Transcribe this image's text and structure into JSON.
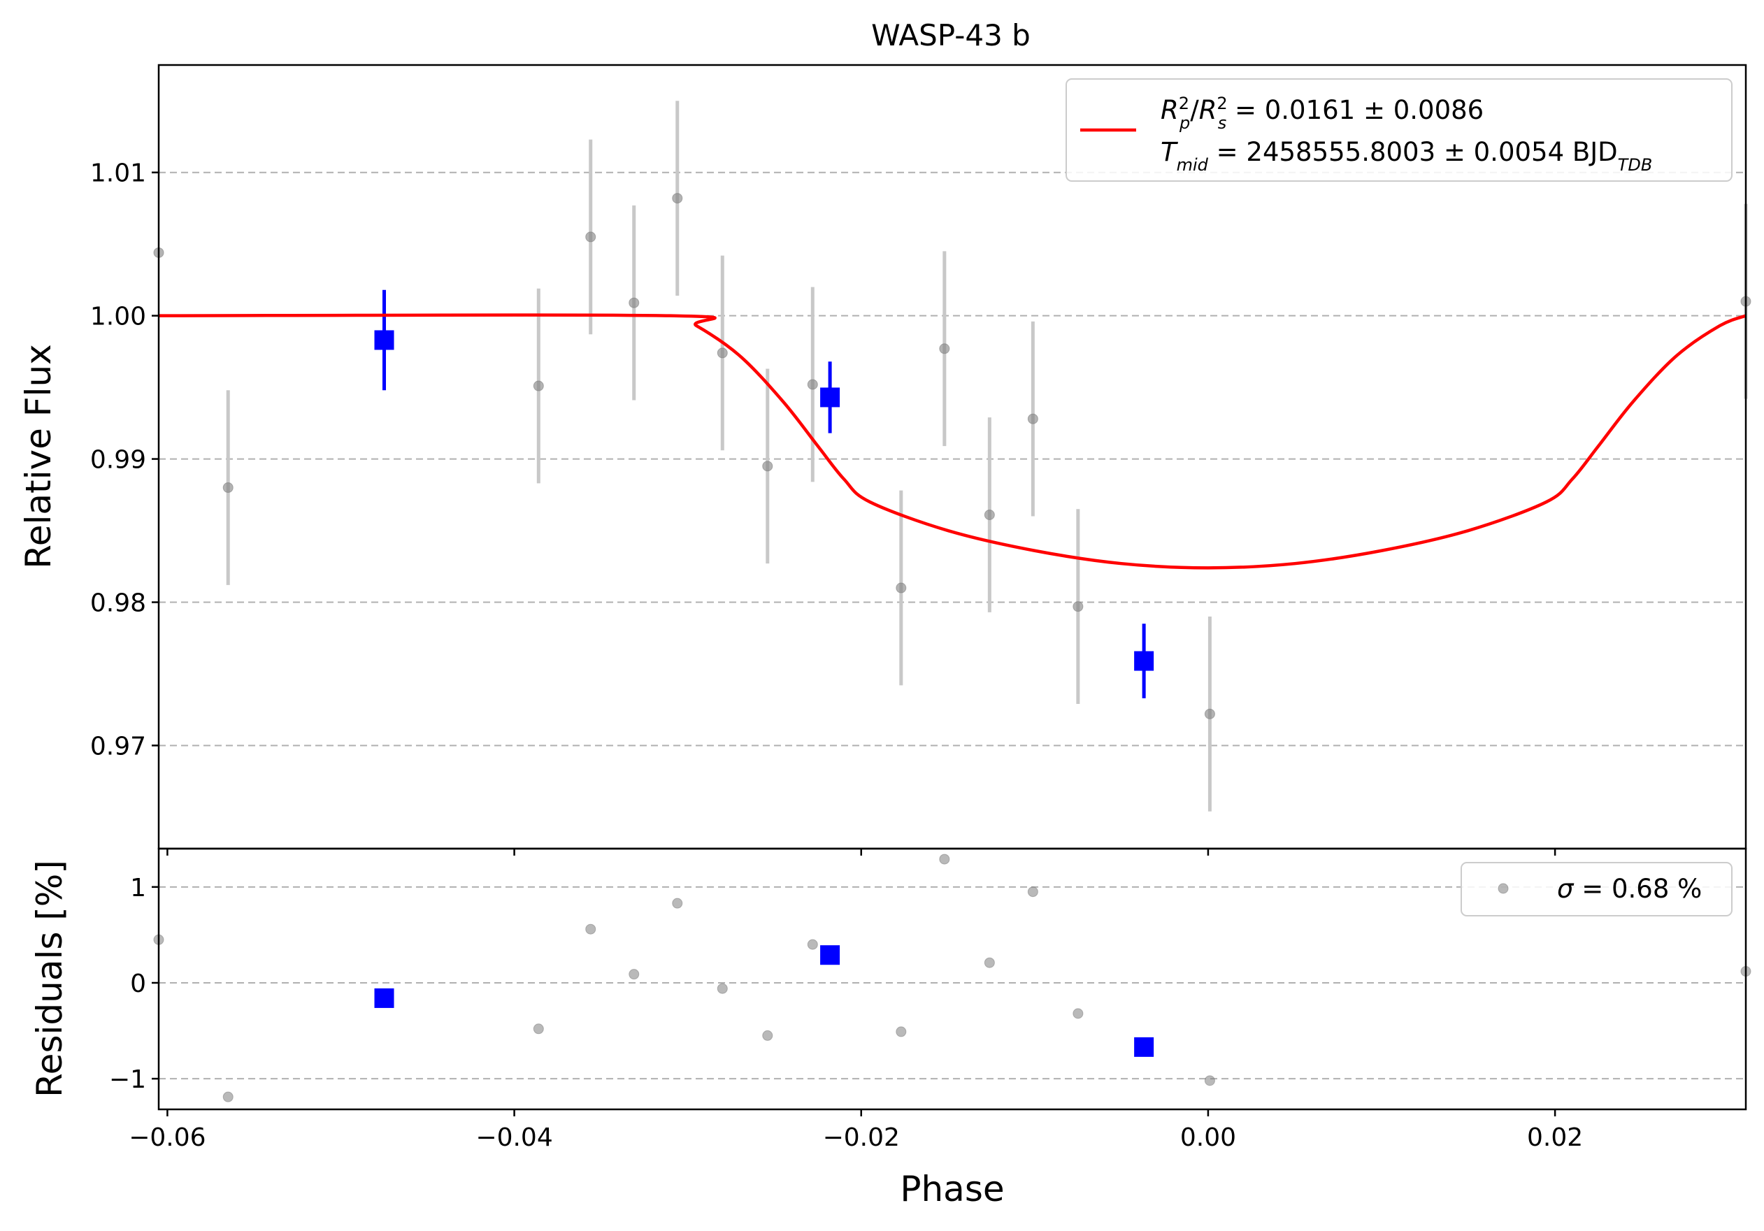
{
  "title": "WASP-43 b",
  "colors": {
    "model": "#ff0000",
    "binned": "#0000ff",
    "raw": "#808080",
    "raw_err": "#c8c8c8",
    "grid": "#b0b0b0"
  },
  "chart_data": [
    {
      "type": "scatter",
      "panel": "light-curve",
      "title": "WASP-43 b",
      "xlabel": "",
      "ylabel": "Relative Flux",
      "xlim": [
        -0.0605,
        0.031
      ],
      "ylim": [
        0.9628,
        1.0175
      ],
      "yticks": [
        0.97,
        0.98,
        0.99,
        1.0,
        1.01
      ],
      "ytick_labels": [
        "0.97",
        "0.98",
        "0.99",
        "1.00",
        "1.01"
      ],
      "grid": "horizontal dashed",
      "legend": {
        "placement": "top-right",
        "line1_main": "R",
        "line1_rest": " = 0.0161 ± 0.0086",
        "line2_main": "T",
        "line2_sub": "mid",
        "line2_rest": " = 2458555.8003 ± 0.0054 BJD",
        "line2_tail_sub": "TDB"
      },
      "series": [
        {
          "kind": "raw",
          "points": [
            {
              "x": -0.0605,
              "y": 1.0044,
              "err": 0.0
            },
            {
              "x": -0.0565,
              "y": 0.988,
              "err": 0.0068
            },
            {
              "x": -0.0386,
              "y": 0.9951,
              "err": 0.0068
            },
            {
              "x": -0.0356,
              "y": 1.0055,
              "err": 0.0068
            },
            {
              "x": -0.0331,
              "y": 1.0009,
              "err": 0.0068
            },
            {
              "x": -0.0306,
              "y": 1.0082,
              "err": 0.0068
            },
            {
              "x": -0.028,
              "y": 0.9974,
              "err": 0.0068
            },
            {
              "x": -0.0254,
              "y": 0.9895,
              "err": 0.0068
            },
            {
              "x": -0.0228,
              "y": 0.9952,
              "err": 0.0068
            },
            {
              "x": -0.0177,
              "y": 0.981,
              "err": 0.0068
            },
            {
              "x": -0.0152,
              "y": 0.9977,
              "err": 0.0068
            },
            {
              "x": -0.0126,
              "y": 0.9861,
              "err": 0.0068
            },
            {
              "x": -0.0101,
              "y": 0.9928,
              "err": 0.0068
            },
            {
              "x": -0.0075,
              "y": 0.9797,
              "err": 0.0068
            },
            {
              "x": 0.0001,
              "y": 0.9722,
              "err": 0.0068
            },
            {
              "x": 0.031,
              "y": 1.001,
              "err": 0.0068
            }
          ]
        },
        {
          "kind": "binned",
          "points": [
            {
              "x": -0.0475,
              "y": 0.9983,
              "err": 0.0035
            },
            {
              "x": -0.0218,
              "y": 0.9943,
              "err": 0.0025
            },
            {
              "x": -0.0037,
              "y": 0.9759,
              "err": 0.0026
            }
          ]
        },
        {
          "kind": "model",
          "points": [
            {
              "x": -0.0605,
              "y": 1.0
            },
            {
              "x": -0.031,
              "y": 1.0
            },
            {
              "x": -0.0295,
              "y": 0.9993
            },
            {
              "x": -0.027,
              "y": 0.9972
            },
            {
              "x": -0.0245,
              "y": 0.994
            },
            {
              "x": -0.0225,
              "y": 0.9909
            },
            {
              "x": -0.021,
              "y": 0.9886
            },
            {
              "x": -0.0195,
              "y": 0.987
            },
            {
              "x": -0.015,
              "y": 0.985
            },
            {
              "x": -0.01,
              "y": 0.9836
            },
            {
              "x": -0.005,
              "y": 0.9827
            },
            {
              "x": 0.0,
              "y": 0.9824
            },
            {
              "x": 0.005,
              "y": 0.9827
            },
            {
              "x": 0.01,
              "y": 0.9836
            },
            {
              "x": 0.015,
              "y": 0.985
            },
            {
              "x": 0.0195,
              "y": 0.987
            },
            {
              "x": 0.021,
              "y": 0.9886
            },
            {
              "x": 0.0225,
              "y": 0.9909
            },
            {
              "x": 0.0245,
              "y": 0.994
            },
            {
              "x": 0.027,
              "y": 0.9972
            },
            {
              "x": 0.0295,
              "y": 0.9993
            },
            {
              "x": 0.031,
              "y": 1.0
            }
          ]
        }
      ]
    },
    {
      "type": "scatter",
      "panel": "residuals",
      "xlabel": "Phase",
      "ylabel": "Residuals [%]",
      "xlim": [
        -0.0605,
        0.031
      ],
      "ylim": [
        -1.32,
        1.4
      ],
      "xticks": [
        -0.06,
        -0.04,
        -0.02,
        0.0,
        0.02
      ],
      "xtick_labels": [
        "−0.06",
        "−0.04",
        "−0.02",
        "0.00",
        "0.02"
      ],
      "yticks": [
        -1,
        0,
        1
      ],
      "ytick_labels": [
        "−1",
        "0",
        "1"
      ],
      "grid": "horizontal dashed",
      "legend": {
        "placement": "top-right",
        "label_sigma": "σ",
        "label_rest": " = 0.68 %"
      },
      "series": [
        {
          "kind": "raw",
          "points": [
            {
              "x": -0.0605,
              "y": 0.45
            },
            {
              "x": -0.0565,
              "y": -1.19
            },
            {
              "x": -0.0386,
              "y": -0.48
            },
            {
              "x": -0.0356,
              "y": 0.56
            },
            {
              "x": -0.0331,
              "y": 0.09
            },
            {
              "x": -0.0306,
              "y": 0.83
            },
            {
              "x": -0.028,
              "y": -0.06
            },
            {
              "x": -0.0254,
              "y": -0.55
            },
            {
              "x": -0.0228,
              "y": 0.4
            },
            {
              "x": -0.0177,
              "y": -0.51
            },
            {
              "x": -0.0152,
              "y": 1.29
            },
            {
              "x": -0.0126,
              "y": 0.21
            },
            {
              "x": -0.0101,
              "y": 0.95
            },
            {
              "x": -0.0075,
              "y": -0.32
            },
            {
              "x": 0.0001,
              "y": -1.02
            },
            {
              "x": 0.031,
              "y": 0.12
            }
          ]
        },
        {
          "kind": "binned",
          "points": [
            {
              "x": -0.0475,
              "y": -0.16
            },
            {
              "x": -0.0218,
              "y": 0.29
            },
            {
              "x": -0.0037,
              "y": -0.67
            }
          ]
        }
      ]
    }
  ]
}
